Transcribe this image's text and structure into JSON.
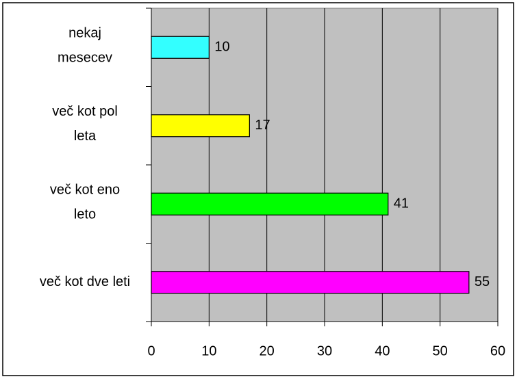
{
  "chart_data": {
    "type": "bar",
    "orientation": "horizontal",
    "categories": [
      "nekaj\nmesecev",
      "več kot pol\nleta",
      "več kot eno\nleto",
      "več kot dve leti"
    ],
    "values": [
      10,
      17,
      41,
      55
    ],
    "colors": [
      "#33ffff",
      "#ffff00",
      "#00ff00",
      "#ff00ff"
    ],
    "xlim": [
      0,
      60
    ],
    "xticks": [
      0,
      10,
      20,
      30,
      40,
      50,
      60
    ],
    "grid": true
  }
}
